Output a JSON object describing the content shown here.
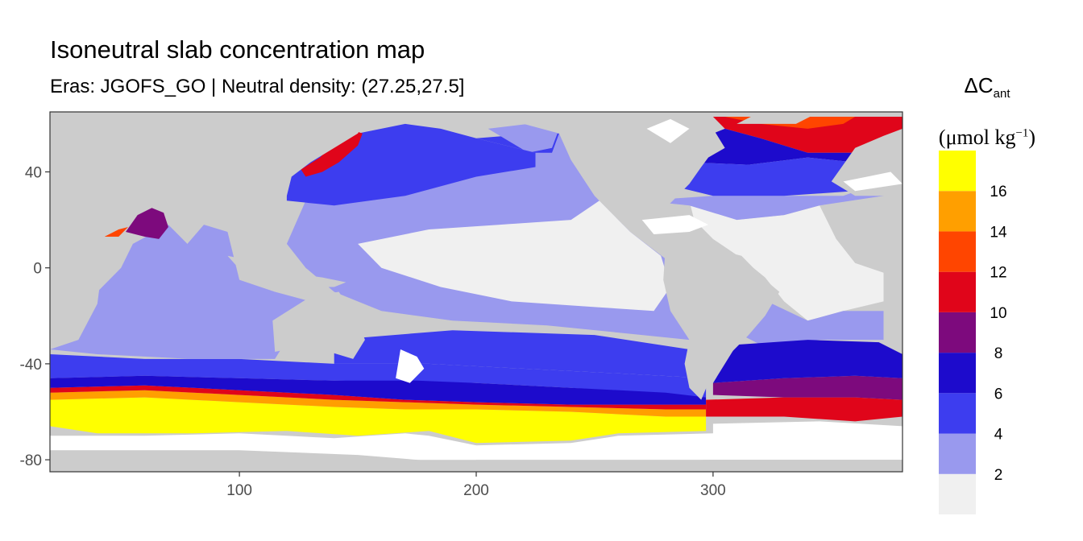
{
  "chart_data": {
    "type": "heatmap",
    "title": "Isoneutral slab concentration map",
    "subtitle": "Eras: JGOFS_GO | Neutral density: (27.25,27.5]",
    "xlim": [
      20,
      380
    ],
    "ylim": [
      -85,
      65
    ],
    "x_ticks": [
      100,
      200,
      300
    ],
    "x_tick_labels": [
      "100",
      "200",
      "300"
    ],
    "y_ticks": [
      40,
      0,
      -40,
      -80
    ],
    "y_tick_labels": [
      "40",
      "0",
      "-40",
      "-80"
    ],
    "grid": false,
    "colors": {
      "land": "#cccccc",
      "no_data": "#ffffff",
      "panel_border": "#333333"
    },
    "legend": {
      "placement": "right",
      "title_main": "ΔC",
      "title_sub": "ant",
      "unit_main": "μmol kg",
      "unit_sup": "−1",
      "breaks": [
        2,
        4,
        6,
        8,
        10,
        12,
        14,
        16
      ],
      "break_labels": [
        "2",
        "4",
        "6",
        "8",
        "10",
        "12",
        "14",
        "16"
      ],
      "bins": [
        {
          "from": 0,
          "to": 2,
          "color": "#f0f0f0"
        },
        {
          "from": 2,
          "to": 4,
          "color": "#9999ee"
        },
        {
          "from": 4,
          "to": 6,
          "color": "#3d3def"
        },
        {
          "from": 6,
          "to": 8,
          "color": "#1d0bcc"
        },
        {
          "from": 8,
          "to": 10,
          "color": "#7d0a7d"
        },
        {
          "from": 10,
          "to": 12,
          "color": "#e0051a"
        },
        {
          "from": 12,
          "to": 14,
          "color": "#ff4500"
        },
        {
          "from": 14,
          "to": 16,
          "color": "#ff9f00"
        },
        {
          "from": 16,
          "to": 18,
          "color": "#ffff00"
        }
      ]
    },
    "regions": [
      {
        "name": "southern-ocean-yellow-core",
        "bin": 8,
        "polygon": [
          [
            20,
            -55
          ],
          [
            60,
            -54
          ],
          [
            100,
            -56
          ],
          [
            140,
            -58
          ],
          [
            170,
            -59
          ],
          [
            200,
            -59
          ],
          [
            240,
            -60
          ],
          [
            280,
            -62
          ],
          [
            297,
            -62
          ],
          [
            297,
            -68
          ],
          [
            260,
            -69
          ],
          [
            240,
            -72
          ],
          [
            200,
            -73
          ],
          [
            180,
            -68
          ],
          [
            150,
            -70
          ],
          [
            120,
            -68
          ],
          [
            80,
            -69
          ],
          [
            40,
            -69
          ],
          [
            20,
            -66
          ]
        ]
      },
      {
        "name": "southern-ocean-orange-edge",
        "bin": 7,
        "polygon": [
          [
            20,
            -52
          ],
          [
            60,
            -51
          ],
          [
            100,
            -53
          ],
          [
            140,
            -55
          ],
          [
            170,
            -56
          ],
          [
            200,
            -57
          ],
          [
            240,
            -58
          ],
          [
            280,
            -59
          ],
          [
            297,
            -59
          ],
          [
            297,
            -62
          ],
          [
            280,
            -62
          ],
          [
            240,
            -60
          ],
          [
            200,
            -59
          ],
          [
            170,
            -59
          ],
          [
            140,
            -58
          ],
          [
            100,
            -56
          ],
          [
            60,
            -54
          ],
          [
            20,
            -55
          ]
        ]
      },
      {
        "name": "southern-ocean-red-edge",
        "bin": 5,
        "polygon": [
          [
            20,
            -50
          ],
          [
            60,
            -49
          ],
          [
            100,
            -51
          ],
          [
            140,
            -53
          ],
          [
            170,
            -55
          ],
          [
            200,
            -56
          ],
          [
            240,
            -57
          ],
          [
            280,
            -57
          ],
          [
            297,
            -57
          ],
          [
            297,
            -59
          ],
          [
            280,
            -59
          ],
          [
            240,
            -58
          ],
          [
            200,
            -57
          ],
          [
            170,
            -56
          ],
          [
            140,
            -55
          ],
          [
            100,
            -53
          ],
          [
            60,
            -51
          ],
          [
            20,
            -52
          ]
        ]
      },
      {
        "name": "southern-ocean-dark-blue",
        "bin": 3,
        "polygon": [
          [
            20,
            -46
          ],
          [
            60,
            -45
          ],
          [
            100,
            -46
          ],
          [
            140,
            -47
          ],
          [
            175,
            -47
          ],
          [
            200,
            -48
          ],
          [
            240,
            -50
          ],
          [
            280,
            -52
          ],
          [
            297,
            -54
          ],
          [
            297,
            -57
          ],
          [
            280,
            -57
          ],
          [
            240,
            -57
          ],
          [
            200,
            -56
          ],
          [
            170,
            -55
          ],
          [
            140,
            -53
          ],
          [
            100,
            -51
          ],
          [
            60,
            -49
          ],
          [
            20,
            -50
          ]
        ]
      },
      {
        "name": "south-atlantic-red-band",
        "bin": 5,
        "polygon": [
          [
            297,
            -55
          ],
          [
            330,
            -54
          ],
          [
            360,
            -54
          ],
          [
            380,
            -55
          ],
          [
            380,
            -62
          ],
          [
            360,
            -64
          ],
          [
            330,
            -62
          ],
          [
            297,
            -62
          ]
        ]
      },
      {
        "name": "south-atlantic-purple-band",
        "bin": 4,
        "polygon": [
          [
            300,
            -48
          ],
          [
            330,
            -46
          ],
          [
            360,
            -45
          ],
          [
            380,
            -46
          ],
          [
            380,
            -55
          ],
          [
            360,
            -54
          ],
          [
            330,
            -54
          ],
          [
            300,
            -53
          ]
        ]
      },
      {
        "name": "south-atlantic-dark-blue",
        "bin": 3,
        "polygon": [
          [
            310,
            -32
          ],
          [
            340,
            -30
          ],
          [
            370,
            -31
          ],
          [
            380,
            -36
          ],
          [
            380,
            -46
          ],
          [
            360,
            -45
          ],
          [
            330,
            -46
          ],
          [
            300,
            -48
          ]
        ]
      },
      {
        "name": "north-atlantic-red",
        "bin": 5,
        "polygon": [
          [
            305,
            58
          ],
          [
            320,
            54
          ],
          [
            340,
            48
          ],
          [
            360,
            48
          ],
          [
            372,
            50
          ],
          [
            380,
            55
          ],
          [
            380,
            63
          ],
          [
            300,
            63
          ]
        ]
      },
      {
        "name": "north-atlantic-orange",
        "bin": 6,
        "polygon": [
          [
            305,
            63
          ],
          [
            320,
            60
          ],
          [
            340,
            58
          ],
          [
            355,
            60
          ],
          [
            360,
            63
          ]
        ]
      },
      {
        "name": "north-atlantic-dark-blue",
        "bin": 3,
        "polygon": [
          [
            290,
            44
          ],
          [
            315,
            43
          ],
          [
            340,
            46
          ],
          [
            360,
            44
          ],
          [
            372,
            42
          ],
          [
            372,
            48
          ],
          [
            360,
            48
          ],
          [
            340,
            48
          ],
          [
            320,
            54
          ],
          [
            305,
            58
          ],
          [
            290,
            52
          ]
        ]
      },
      {
        "name": "north-atlantic-blue",
        "bin": 2,
        "polygon": [
          [
            275,
            36
          ],
          [
            300,
            30
          ],
          [
            330,
            30
          ],
          [
            360,
            32
          ],
          [
            372,
            36
          ],
          [
            372,
            42
          ],
          [
            360,
            44
          ],
          [
            340,
            46
          ],
          [
            315,
            43
          ],
          [
            290,
            44
          ],
          [
            275,
            40
          ]
        ]
      },
      {
        "name": "north-pacific-blue",
        "bin": 2,
        "polygon": [
          [
            120,
            40
          ],
          [
            150,
            56
          ],
          [
            170,
            60
          ],
          [
            185,
            58
          ],
          [
            200,
            54
          ],
          [
            225,
            48
          ],
          [
            225,
            42
          ],
          [
            200,
            38
          ],
          [
            170,
            30
          ],
          [
            140,
            26
          ],
          [
            120,
            28
          ]
        ]
      },
      {
        "name": "kuroshio-red",
        "bin": 5,
        "polygon": [
          [
            128,
            38
          ],
          [
            135,
            40
          ],
          [
            142,
            44
          ],
          [
            150,
            51
          ],
          [
            152,
            56
          ],
          [
            146,
            58
          ],
          [
            140,
            52
          ],
          [
            134,
            46
          ],
          [
            126,
            41
          ]
        ]
      },
      {
        "name": "arabian-sea-purple",
        "bin": 4,
        "polygon": [
          [
            57,
            22
          ],
          [
            63,
            25
          ],
          [
            68,
            23
          ],
          [
            70,
            17
          ],
          [
            66,
            12
          ],
          [
            60,
            13
          ],
          [
            52,
            15
          ]
        ]
      },
      {
        "name": "red-sea-orange",
        "bin": 6,
        "polygon": [
          [
            43,
            13
          ],
          [
            49,
            16
          ],
          [
            53,
            17
          ],
          [
            49,
            13
          ]
        ]
      }
    ]
  }
}
